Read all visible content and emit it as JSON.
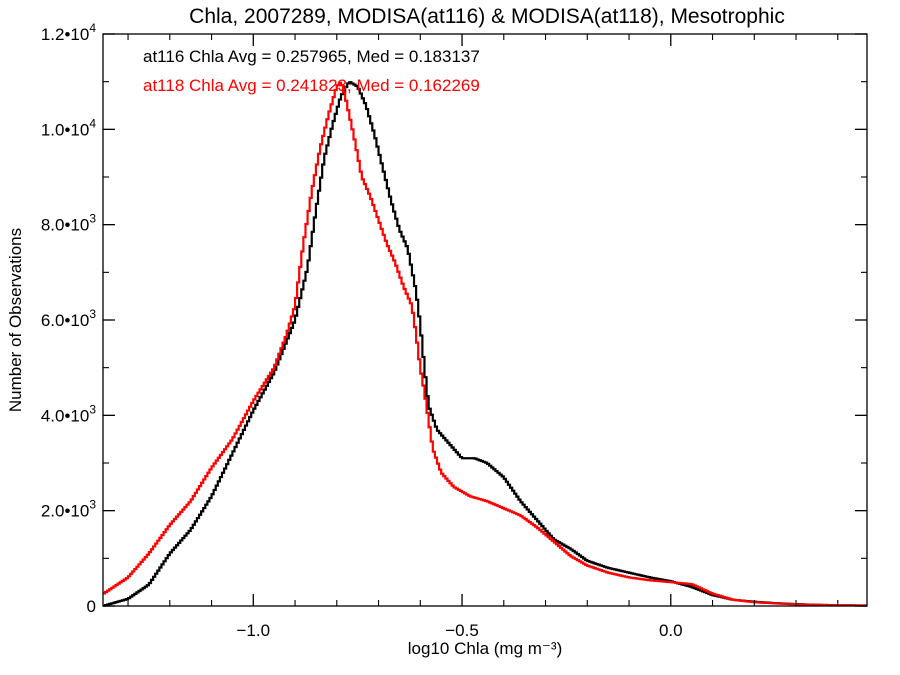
{
  "chart_data": {
    "type": "line",
    "title": "Chla, 2007289, MODISA(at116) & MODISA(at118), Mesotrophic",
    "xlabel": "log10 Chla (mg m⁻³)",
    "ylabel": "Number of Observations",
    "xlim": [
      -1.36,
      0.47
    ],
    "ylim": [
      0,
      12000
    ],
    "x_ticks": [
      -1.0,
      -0.5,
      0.0
    ],
    "x_tick_labels": [
      "−1.0",
      "−0.5",
      "0.0"
    ],
    "y_ticks": [
      {
        "value": 0,
        "mantissa": "0",
        "exp": ""
      },
      {
        "value": 2000,
        "mantissa": "2.0•10",
        "exp": "3"
      },
      {
        "value": 4000,
        "mantissa": "4.0•10",
        "exp": "3"
      },
      {
        "value": 6000,
        "mantissa": "6.0•10",
        "exp": "3"
      },
      {
        "value": 8000,
        "mantissa": "8.0•10",
        "exp": "3"
      },
      {
        "value": 10000,
        "mantissa": "1.0•10",
        "exp": "4"
      },
      {
        "value": 12000,
        "mantissa": "1.2•10",
        "exp": "4"
      }
    ],
    "grid": false,
    "annotations": [
      {
        "text": "at116 Chla Avg = 0.257965, Med = 0.183137",
        "color": "#000000"
      },
      {
        "text": "at118 Chla Avg = 0.241823, Med = 0.162269",
        "color": "#ff0000"
      }
    ],
    "series": [
      {
        "color": "#000000",
        "points": [
          [
            -1.36,
            0
          ],
          [
            -1.3,
            150
          ],
          [
            -1.25,
            450
          ],
          [
            -1.2,
            1100
          ],
          [
            -1.15,
            1600
          ],
          [
            -1.1,
            2300
          ],
          [
            -1.05,
            3200
          ],
          [
            -1.0,
            4100
          ],
          [
            -0.95,
            4900
          ],
          [
            -0.9,
            6000
          ],
          [
            -0.87,
            7100
          ],
          [
            -0.85,
            8300
          ],
          [
            -0.83,
            9400
          ],
          [
            -0.81,
            10100
          ],
          [
            -0.79,
            10700
          ],
          [
            -0.77,
            11000
          ],
          [
            -0.75,
            10900
          ],
          [
            -0.73,
            10500
          ],
          [
            -0.71,
            9900
          ],
          [
            -0.69,
            9200
          ],
          [
            -0.67,
            8500
          ],
          [
            -0.65,
            7900
          ],
          [
            -0.63,
            7500
          ],
          [
            -0.61,
            6600
          ],
          [
            -0.6,
            5900
          ],
          [
            -0.59,
            5000
          ],
          [
            -0.58,
            4200
          ],
          [
            -0.56,
            3700
          ],
          [
            -0.53,
            3400
          ],
          [
            -0.5,
            3100
          ],
          [
            -0.47,
            3100
          ],
          [
            -0.44,
            3000
          ],
          [
            -0.4,
            2700
          ],
          [
            -0.36,
            2200
          ],
          [
            -0.32,
            1800
          ],
          [
            -0.28,
            1400
          ],
          [
            -0.24,
            1200
          ],
          [
            -0.2,
            950
          ],
          [
            -0.15,
            800
          ],
          [
            -0.1,
            700
          ],
          [
            -0.05,
            600
          ],
          [
            0.0,
            520
          ],
          [
            0.05,
            400
          ],
          [
            0.1,
            230
          ],
          [
            0.15,
            130
          ],
          [
            0.2,
            90
          ],
          [
            0.25,
            60
          ],
          [
            0.3,
            40
          ],
          [
            0.35,
            25
          ],
          [
            0.4,
            15
          ],
          [
            0.47,
            10
          ]
        ]
      },
      {
        "color": "#ff0000",
        "points": [
          [
            -1.36,
            250
          ],
          [
            -1.3,
            600
          ],
          [
            -1.25,
            1100
          ],
          [
            -1.2,
            1700
          ],
          [
            -1.15,
            2200
          ],
          [
            -1.1,
            2900
          ],
          [
            -1.05,
            3500
          ],
          [
            -1.0,
            4300
          ],
          [
            -0.95,
            5000
          ],
          [
            -0.92,
            5700
          ],
          [
            -0.9,
            6300
          ],
          [
            -0.88,
            7600
          ],
          [
            -0.86,
            8700
          ],
          [
            -0.84,
            9600
          ],
          [
            -0.82,
            10300
          ],
          [
            -0.8,
            10900
          ],
          [
            -0.79,
            11000
          ],
          [
            -0.78,
            10700
          ],
          [
            -0.76,
            9900
          ],
          [
            -0.74,
            9000
          ],
          [
            -0.72,
            8600
          ],
          [
            -0.7,
            8100
          ],
          [
            -0.68,
            7600
          ],
          [
            -0.66,
            7200
          ],
          [
            -0.64,
            6700
          ],
          [
            -0.62,
            6300
          ],
          [
            -0.61,
            5700
          ],
          [
            -0.6,
            5000
          ],
          [
            -0.59,
            4500
          ],
          [
            -0.58,
            3900
          ],
          [
            -0.57,
            3300
          ],
          [
            -0.55,
            2800
          ],
          [
            -0.52,
            2500
          ],
          [
            -0.48,
            2300
          ],
          [
            -0.44,
            2200
          ],
          [
            -0.4,
            2050
          ],
          [
            -0.36,
            1900
          ],
          [
            -0.32,
            1650
          ],
          [
            -0.28,
            1350
          ],
          [
            -0.24,
            1050
          ],
          [
            -0.2,
            850
          ],
          [
            -0.15,
            700
          ],
          [
            -0.1,
            600
          ],
          [
            -0.05,
            540
          ],
          [
            0.0,
            500
          ],
          [
            0.05,
            460
          ],
          [
            0.1,
            260
          ],
          [
            0.15,
            130
          ],
          [
            0.2,
            80
          ],
          [
            0.25,
            55
          ],
          [
            0.3,
            35
          ],
          [
            0.35,
            25
          ],
          [
            0.4,
            15
          ],
          [
            0.47,
            10
          ]
        ]
      }
    ]
  }
}
